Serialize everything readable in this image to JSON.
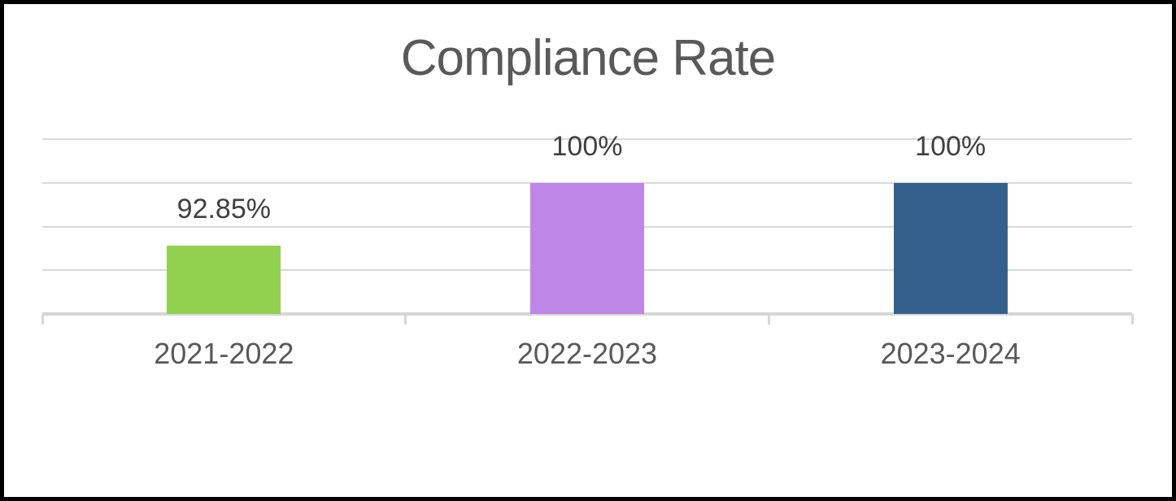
{
  "frame": {
    "background": "#FFFFFF",
    "border_color": "#000000"
  },
  "chart_data": {
    "type": "bar",
    "title": "Compliance Rate",
    "categories": [
      "2021-2022",
      "2022-2023",
      "2023-2024"
    ],
    "values": [
      92.85,
      100,
      100
    ],
    "data_labels": [
      "92.85%",
      "100%",
      "100%"
    ],
    "series_colors": [
      "#92D050",
      "#BE86E6",
      "#34608E"
    ],
    "xlabel": "",
    "ylabel": "",
    "ylim": [
      85,
      105
    ],
    "gridline_step": 5,
    "grid": true,
    "legend": "none",
    "y_axis_tick_labels_visible": false,
    "colors": {
      "title": "#595959",
      "data_label": "#404040",
      "category_label": "#595959",
      "gridline": "#D9D9D9",
      "axis_line": "#D6D6D6"
    }
  }
}
